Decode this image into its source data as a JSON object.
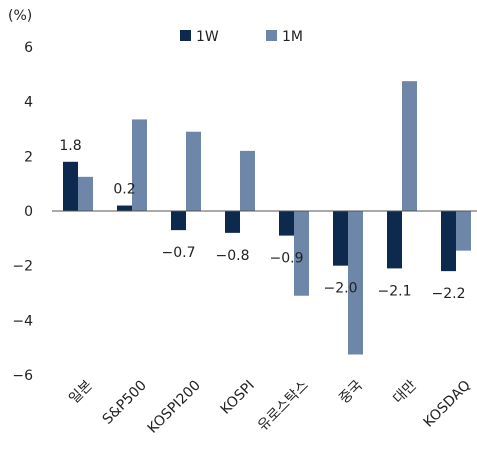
{
  "chart_data": {
    "type": "bar",
    "ylabel": "(%)",
    "ylim": [
      -6,
      6
    ],
    "yticks": [
      -6,
      -4,
      -2,
      0,
      2,
      4,
      6
    ],
    "categories": [
      "일본",
      "S&P500",
      "KOSPI200",
      "KOSPI",
      "유로스탁스",
      "중국",
      "대만",
      "KOSDAQ"
    ],
    "series": [
      {
        "name": "1W",
        "color": "#0d2a4e",
        "values": [
          1.8,
          0.2,
          -0.7,
          -0.8,
          -0.9,
          -2.0,
          -2.1,
          -2.2
        ]
      },
      {
        "name": "1M",
        "color": "#6e86a8",
        "values": [
          1.25,
          3.35,
          2.9,
          2.2,
          -3.1,
          -5.25,
          4.75,
          -1.45
        ]
      }
    ],
    "data_labels": [
      "1.8",
      "0.2",
      "−0.7",
      "−0.8",
      "−0.9",
      "−2.0",
      "−2.1",
      "−2.2"
    ],
    "legend": "top"
  }
}
